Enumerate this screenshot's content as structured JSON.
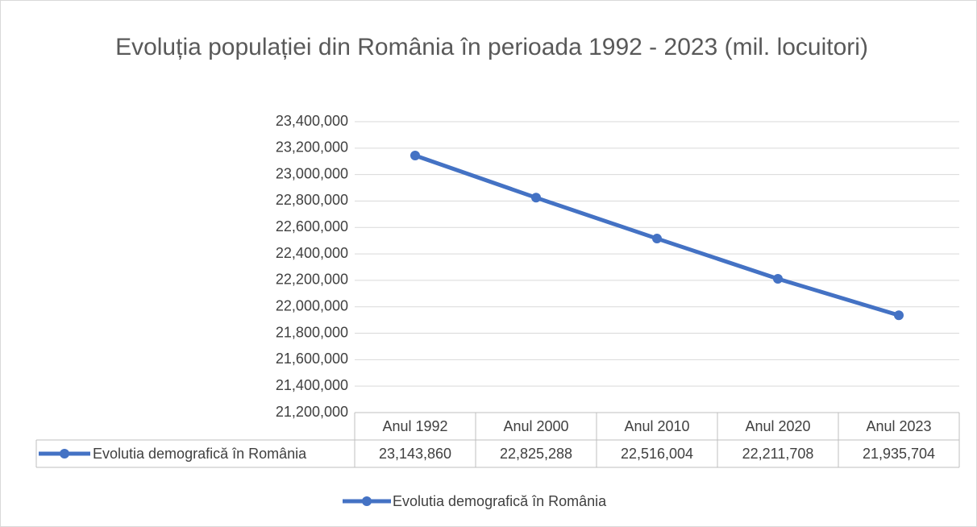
{
  "chart_data": {
    "type": "line",
    "title": "Evoluția populației din România în perioada 1992 - 2023 (mil. locuitori)",
    "categories": [
      "Anul 1992",
      "Anul 2000",
      "Anul 2010",
      "Anul 2020",
      "Anul 2023"
    ],
    "series": [
      {
        "name": "Evolutia demografică în România",
        "color": "#4472c4",
        "values": [
          23143860,
          22825288,
          22516004,
          22211708,
          21935704
        ],
        "value_labels": [
          "23,143,860",
          "22,825,288",
          "22,516,004",
          "22,211,708",
          "21,935,704"
        ]
      }
    ],
    "ylim": [
      21200000,
      23400000
    ],
    "yticks": [
      {
        "value": 21200000,
        "label": "21,200,000"
      },
      {
        "value": 21400000,
        "label": "21,400,000"
      },
      {
        "value": 21600000,
        "label": "21,600,000"
      },
      {
        "value": 21800000,
        "label": "21,800,000"
      },
      {
        "value": 22000000,
        "label": "22,000,000"
      },
      {
        "value": 22200000,
        "label": "22,200,000"
      },
      {
        "value": 22400000,
        "label": "22,400,000"
      },
      {
        "value": 22600000,
        "label": "22,600,000"
      },
      {
        "value": 22800000,
        "label": "22,800,000"
      },
      {
        "value": 23000000,
        "label": "23,000,000"
      },
      {
        "value": 23200000,
        "label": "23,200,000"
      },
      {
        "value": 23400000,
        "label": "23,400,000"
      }
    ],
    "grid": true,
    "legend": "bottom",
    "data_table": true
  }
}
